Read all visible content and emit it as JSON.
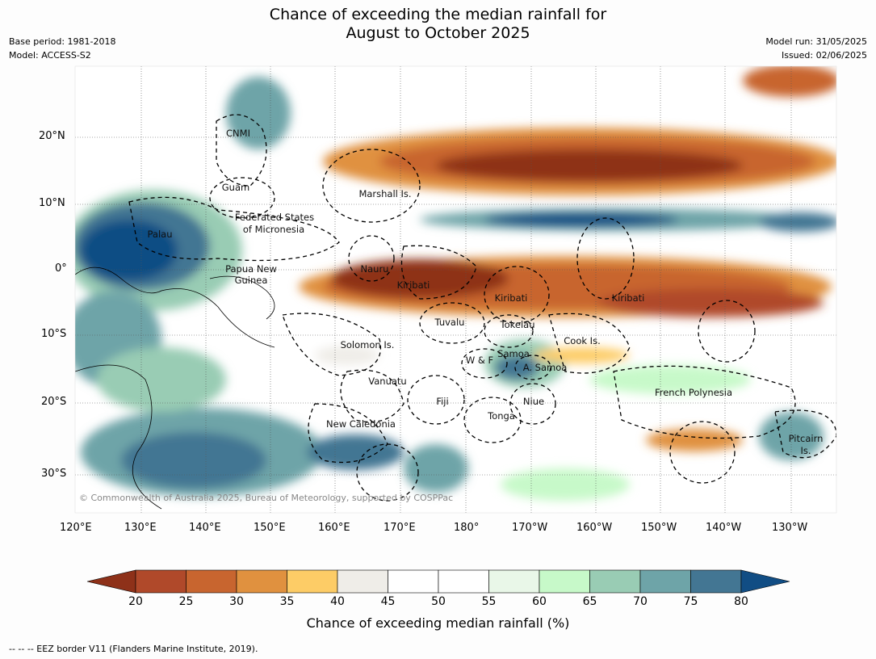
{
  "title_line1": "Chance of exceeding the median rainfall for",
  "title_line2": "August to October 2025",
  "base_period": "Base period: 1981-2018",
  "model": "Model: ACCESS-S2",
  "model_run": "Model run: 31/05/2025",
  "issued": "Issued: 02/06/2025",
  "lat_labels": [
    "20°N",
    "10°N",
    "0°",
    "10°S",
    "20°S",
    "30°S"
  ],
  "lon_labels": [
    "120°E",
    "130°E",
    "140°E",
    "150°E",
    "160°E",
    "170°E",
    "180°",
    "170°W",
    "160°W",
    "150°W",
    "140°W",
    "130°W"
  ],
  "places": [
    {
      "name": "CNMI"
    },
    {
      "name": "Guam"
    },
    {
      "name": "Marshall Is."
    },
    {
      "name": "Federated States"
    },
    {
      "name": "of Micronesia"
    },
    {
      "name": "Palau"
    },
    {
      "name": "Papua New"
    },
    {
      "name": "Guinea"
    },
    {
      "name": "Nauru"
    },
    {
      "name": "Kiribati"
    },
    {
      "name": "Kiribati"
    },
    {
      "name": "Kiribati"
    },
    {
      "name": "Tuvalu"
    },
    {
      "name": "Tokelau"
    },
    {
      "name": "Solomon Is."
    },
    {
      "name": "Cook Is."
    },
    {
      "name": "W & F"
    },
    {
      "name": "Samoa"
    },
    {
      "name": "A. Samoa"
    },
    {
      "name": "Vanuatu"
    },
    {
      "name": "Fiji"
    },
    {
      "name": "Niue"
    },
    {
      "name": "French Polynesia"
    },
    {
      "name": "Tonga"
    },
    {
      "name": "New Caledonia"
    },
    {
      "name": "Pitcairn"
    },
    {
      "name": "Is."
    }
  ],
  "copyright": "© Commonwealth of Australia 2025, Bureau of Meteorology, supported by COSPPac",
  "colorbar": {
    "ticks": [
      "20",
      "25",
      "30",
      "35",
      "40",
      "45",
      "50",
      "55",
      "60",
      "65",
      "70",
      "75",
      "80"
    ],
    "colors": [
      "#8e3119",
      "#b0492a",
      "#c8652f",
      "#e0913f",
      "#fdcc66",
      "#efede8",
      "#ffffff",
      "#ffffff",
      "#e9f7e8",
      "#c7f9c9",
      "#99ccb4",
      "#6ea4a8",
      "#437693",
      "#114d84"
    ],
    "label": "Chance of exceeding median rainfall (%)"
  },
  "footnote": "--  --  -- EEZ border V11 (Flanders Marine Institute, 2019)."
}
